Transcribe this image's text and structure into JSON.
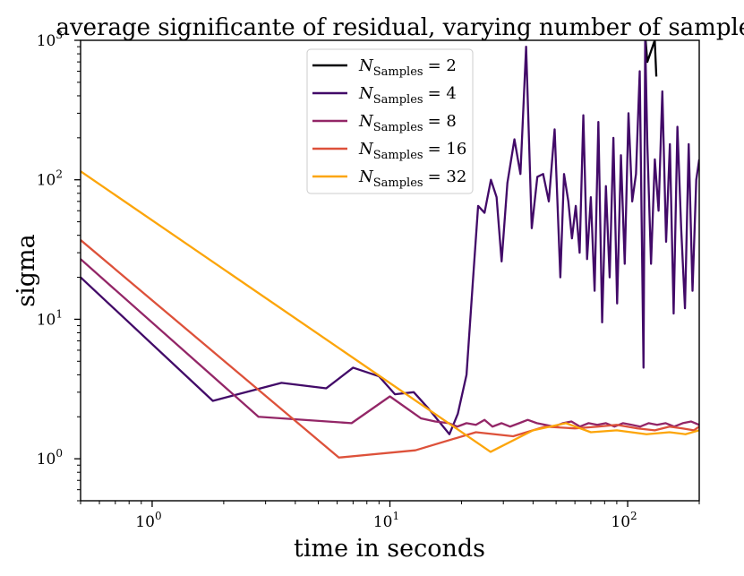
{
  "chart_data": {
    "type": "line",
    "title": "average significante of residual, varying number of samples",
    "xlabel": "time in seconds",
    "ylabel": "sigma",
    "xscale": "log",
    "yscale": "log",
    "xlim": [
      0.5,
      200
    ],
    "ylim": [
      0.5,
      1000
    ],
    "x_ticks": [
      {
        "value": 1,
        "label": "10",
        "exp": "0"
      },
      {
        "value": 10,
        "label": "10",
        "exp": "1"
      },
      {
        "value": 100,
        "label": "10",
        "exp": "2"
      }
    ],
    "y_ticks": [
      {
        "value": 1,
        "label": "10",
        "exp": "0"
      },
      {
        "value": 10,
        "label": "10",
        "exp": "1"
      },
      {
        "value": 100,
        "label": "10",
        "exp": "2"
      },
      {
        "value": 1000,
        "label": "10",
        "exp": "3"
      }
    ],
    "legend_position": "top-center",
    "legend_symbol": "N",
    "legend_subscript": "Samples",
    "series": [
      {
        "name": "N_Samples = 2",
        "legend_value": "= 2",
        "color": "#000004",
        "x": [
          119,
          121,
          130,
          132
        ],
        "y": [
          1000,
          700,
          1000,
          550
        ]
      },
      {
        "name": "N_Samples = 4",
        "legend_value": "= 4",
        "color": "#420a68",
        "x": [
          0.5,
          1.8,
          3.5,
          5.4,
          7.0,
          9.0,
          10.5,
          12.6,
          14.5,
          17.8,
          19.3,
          21.0,
          22.3,
          23.5,
          25.0,
          26.6,
          28.1,
          29.5,
          31.2,
          33.4,
          35.4,
          37.4,
          39.5,
          41.7,
          44.1,
          46.6,
          49.3,
          52.1,
          54.0,
          56.3,
          58.3,
          60.5,
          62.8,
          65.1,
          67.5,
          70.0,
          72.6,
          75.3,
          78.1,
          81.0,
          84.0,
          87.1,
          90.3,
          93.7,
          97.2,
          100.8,
          104.5,
          108.4,
          112.4,
          116.6,
          118.5,
          121.0,
          125.4,
          130.1,
          134.9,
          139.9,
          145.1,
          150.5,
          156.1,
          161.9,
          167.9,
          174.2,
          180.6,
          187.4,
          194.3,
          200.0
        ],
        "y": [
          20,
          2.6,
          3.5,
          3.2,
          4.5,
          3.9,
          2.9,
          3.0,
          2.3,
          1.5,
          2.1,
          4.0,
          18,
          65,
          58,
          100,
          75,
          26,
          95,
          195,
          110,
          900,
          45,
          105,
          110,
          70,
          230,
          20,
          110,
          70,
          38,
          65,
          30,
          290,
          27,
          75,
          16,
          260,
          9.5,
          90,
          20,
          200,
          13,
          150,
          25,
          300,
          70,
          110,
          600,
          4.5,
          1000,
          180,
          25,
          140,
          60,
          430,
          36,
          180,
          11,
          240,
          45,
          12,
          180,
          16,
          100,
          140
        ]
      },
      {
        "name": "N_Samples = 8",
        "legend_value": "= 8",
        "color": "#932667",
        "x": [
          0.5,
          2.8,
          6.9,
          10.0,
          13.5,
          15.5,
          17.7,
          19.2,
          21.0,
          23.0,
          25.0,
          27.0,
          29.5,
          32.0,
          35.0,
          38.0,
          41.5,
          45.0,
          49.0,
          53.5,
          58.0,
          63.0,
          68.5,
          74.5,
          81.0,
          88.0,
          95.5,
          104.0,
          113.0,
          122.5,
          133.0,
          144.5,
          157.0,
          170.5,
          185.0,
          200.0
        ],
        "y": [
          27,
          2.0,
          1.8,
          2.8,
          1.95,
          1.85,
          1.8,
          1.7,
          1.8,
          1.75,
          1.9,
          1.7,
          1.8,
          1.7,
          1.8,
          1.9,
          1.8,
          1.75,
          1.7,
          1.8,
          1.85,
          1.7,
          1.8,
          1.75,
          1.8,
          1.7,
          1.8,
          1.75,
          1.7,
          1.8,
          1.75,
          1.8,
          1.7,
          1.8,
          1.85,
          1.75
        ]
      },
      {
        "name": "N_Samples = 16",
        "legend_value": "= 16",
        "color": "#dd513a",
        "x": [
          0.5,
          6.1,
          12.8,
          23.0,
          33.0,
          45.0,
          60.0,
          75.0,
          90.0,
          110.0,
          130.0,
          150.0,
          170.0,
          190.0,
          200.0
        ],
        "y": [
          37,
          1.02,
          1.15,
          1.55,
          1.45,
          1.7,
          1.65,
          1.7,
          1.75,
          1.65,
          1.6,
          1.7,
          1.65,
          1.6,
          1.7
        ]
      },
      {
        "name": "N_Samples = 32",
        "legend_value": "= 32",
        "color": "#fca50a",
        "x": [
          0.5,
          26.5,
          40.0,
          55.0,
          70.0,
          90.0,
          120.0,
          150.0,
          175.0,
          200.0
        ],
        "y": [
          115,
          1.12,
          1.6,
          1.8,
          1.55,
          1.6,
          1.5,
          1.55,
          1.5,
          1.6
        ]
      }
    ]
  }
}
